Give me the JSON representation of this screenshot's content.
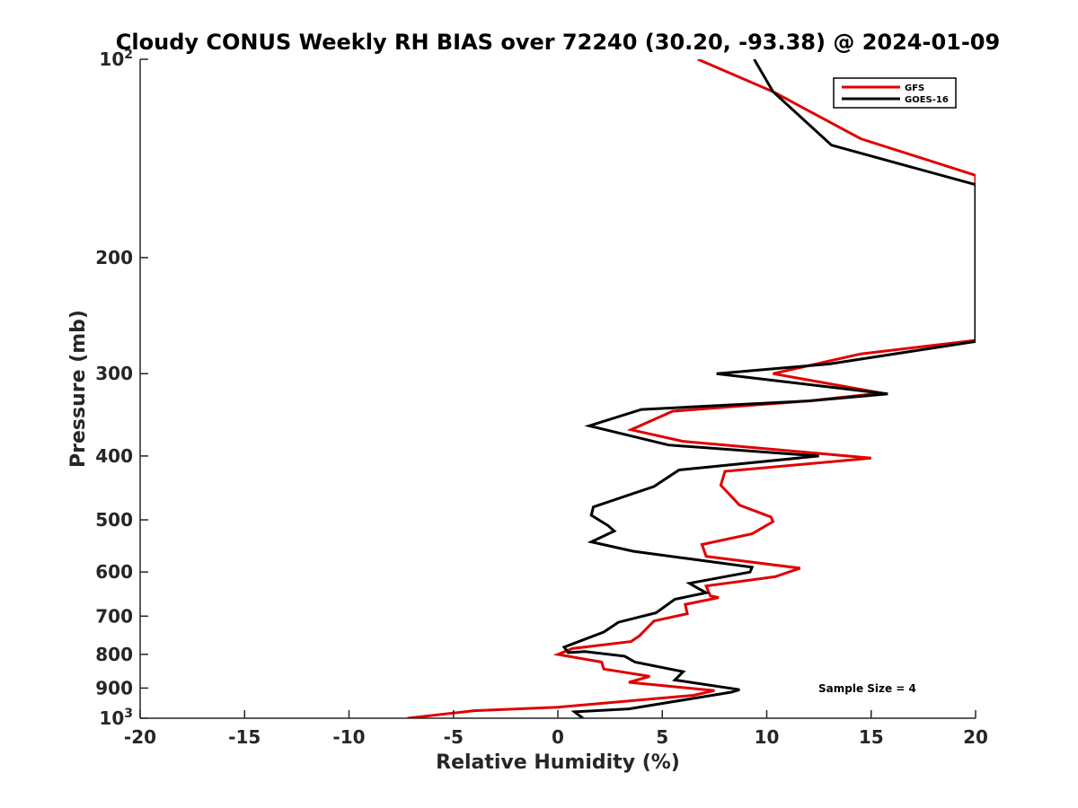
{
  "chart_data": {
    "type": "line",
    "title": "Cloudy CONUS Weekly RH BIAS over 72240 (30.20, -93.38) @ 2024-01-09",
    "xlabel": "Relative Humidity (%)",
    "ylabel": "Pressure (mb)",
    "xlim": [
      -20,
      20
    ],
    "ylim": [
      100,
      1000
    ],
    "yscale": "log",
    "yreversed": true,
    "x_ticks": [
      "-20",
      "-15",
      "-10",
      "-5",
      "0",
      "5",
      "10",
      "15",
      "20"
    ],
    "x_tick_values": [
      -20,
      -15,
      -10,
      -5,
      0,
      5,
      10,
      15,
      20
    ],
    "y_ticks": [
      {
        "value": 100,
        "base": "10",
        "exp": "2"
      },
      {
        "value": 200,
        "label": "200"
      },
      {
        "value": 300,
        "label": "300"
      },
      {
        "value": 400,
        "label": "400"
      },
      {
        "value": 500,
        "label": "500"
      },
      {
        "value": 600,
        "label": "600"
      },
      {
        "value": 700,
        "label": "700"
      },
      {
        "value": 800,
        "label": "800"
      },
      {
        "value": 900,
        "label": "900"
      },
      {
        "value": 1000,
        "base": "10",
        "exp": "3"
      }
    ],
    "legend_position": "top-right",
    "annotation": "Sample Size = 4",
    "series": [
      {
        "name": "GFS",
        "color": "#e00000",
        "points": [
          [
            6.7,
            100
          ],
          [
            10.3,
            112
          ],
          [
            14.5,
            132
          ],
          [
            20.0,
            150
          ],
          [
            20.0,
            267
          ],
          [
            14.5,
            280
          ],
          [
            10.3,
            300
          ],
          [
            15.5,
            321
          ],
          [
            12.0,
            330
          ],
          [
            5.5,
            342
          ],
          [
            3.5,
            365
          ],
          [
            6.0,
            380
          ],
          [
            8.0,
            385
          ],
          [
            15.0,
            403
          ],
          [
            8.0,
            422
          ],
          [
            7.8,
            443
          ],
          [
            8.7,
            475
          ],
          [
            10.2,
            495
          ],
          [
            10.3,
            503
          ],
          [
            9.3,
            525
          ],
          [
            6.9,
            545
          ],
          [
            7.1,
            568
          ],
          [
            11.6,
            592
          ],
          [
            10.4,
            610
          ],
          [
            7.1,
            630
          ],
          [
            7.3,
            652
          ],
          [
            7.7,
            656
          ],
          [
            6.1,
            672
          ],
          [
            6.2,
            694
          ],
          [
            4.6,
            712
          ],
          [
            3.9,
            750
          ],
          [
            3.5,
            765
          ],
          [
            0.7,
            784
          ],
          [
            0.0,
            800
          ],
          [
            2.1,
            822
          ],
          [
            2.2,
            842
          ],
          [
            4.4,
            864
          ],
          [
            3.4,
            882
          ],
          [
            7.5,
            908
          ],
          [
            6.5,
            923
          ],
          [
            0.0,
            962
          ],
          [
            -4.0,
            974
          ],
          [
            -7.2,
            1000
          ]
        ]
      },
      {
        "name": "GOES-16",
        "color": "#000000",
        "points": [
          [
            9.4,
            100
          ],
          [
            10.3,
            112
          ],
          [
            13.1,
            135
          ],
          [
            20.0,
            155
          ],
          [
            20.0,
            268
          ],
          [
            13.0,
            290
          ],
          [
            7.6,
            300
          ],
          [
            15.8,
            322
          ],
          [
            12.0,
            330
          ],
          [
            4.0,
            340
          ],
          [
            1.5,
            360
          ],
          [
            5.3,
            385
          ],
          [
            12.5,
            400
          ],
          [
            5.8,
            420
          ],
          [
            4.6,
            445
          ],
          [
            1.7,
            478
          ],
          [
            1.6,
            492
          ],
          [
            2.4,
            510
          ],
          [
            2.7,
            520
          ],
          [
            1.6,
            540
          ],
          [
            3.6,
            558
          ],
          [
            9.3,
            590
          ],
          [
            9.2,
            600
          ],
          [
            6.3,
            624
          ],
          [
            6.7,
            635
          ],
          [
            7.1,
            645
          ],
          [
            5.6,
            660
          ],
          [
            4.7,
            692
          ],
          [
            2.9,
            715
          ],
          [
            2.2,
            740
          ],
          [
            0.3,
            780
          ],
          [
            0.5,
            795
          ],
          [
            1.3,
            792
          ],
          [
            3.2,
            805
          ],
          [
            3.7,
            822
          ],
          [
            6.0,
            850
          ],
          [
            5.6,
            875
          ],
          [
            8.7,
            905
          ],
          [
            8.3,
            913
          ],
          [
            3.4,
            968
          ],
          [
            0.8,
            978
          ],
          [
            1.2,
            1000
          ]
        ]
      }
    ]
  }
}
